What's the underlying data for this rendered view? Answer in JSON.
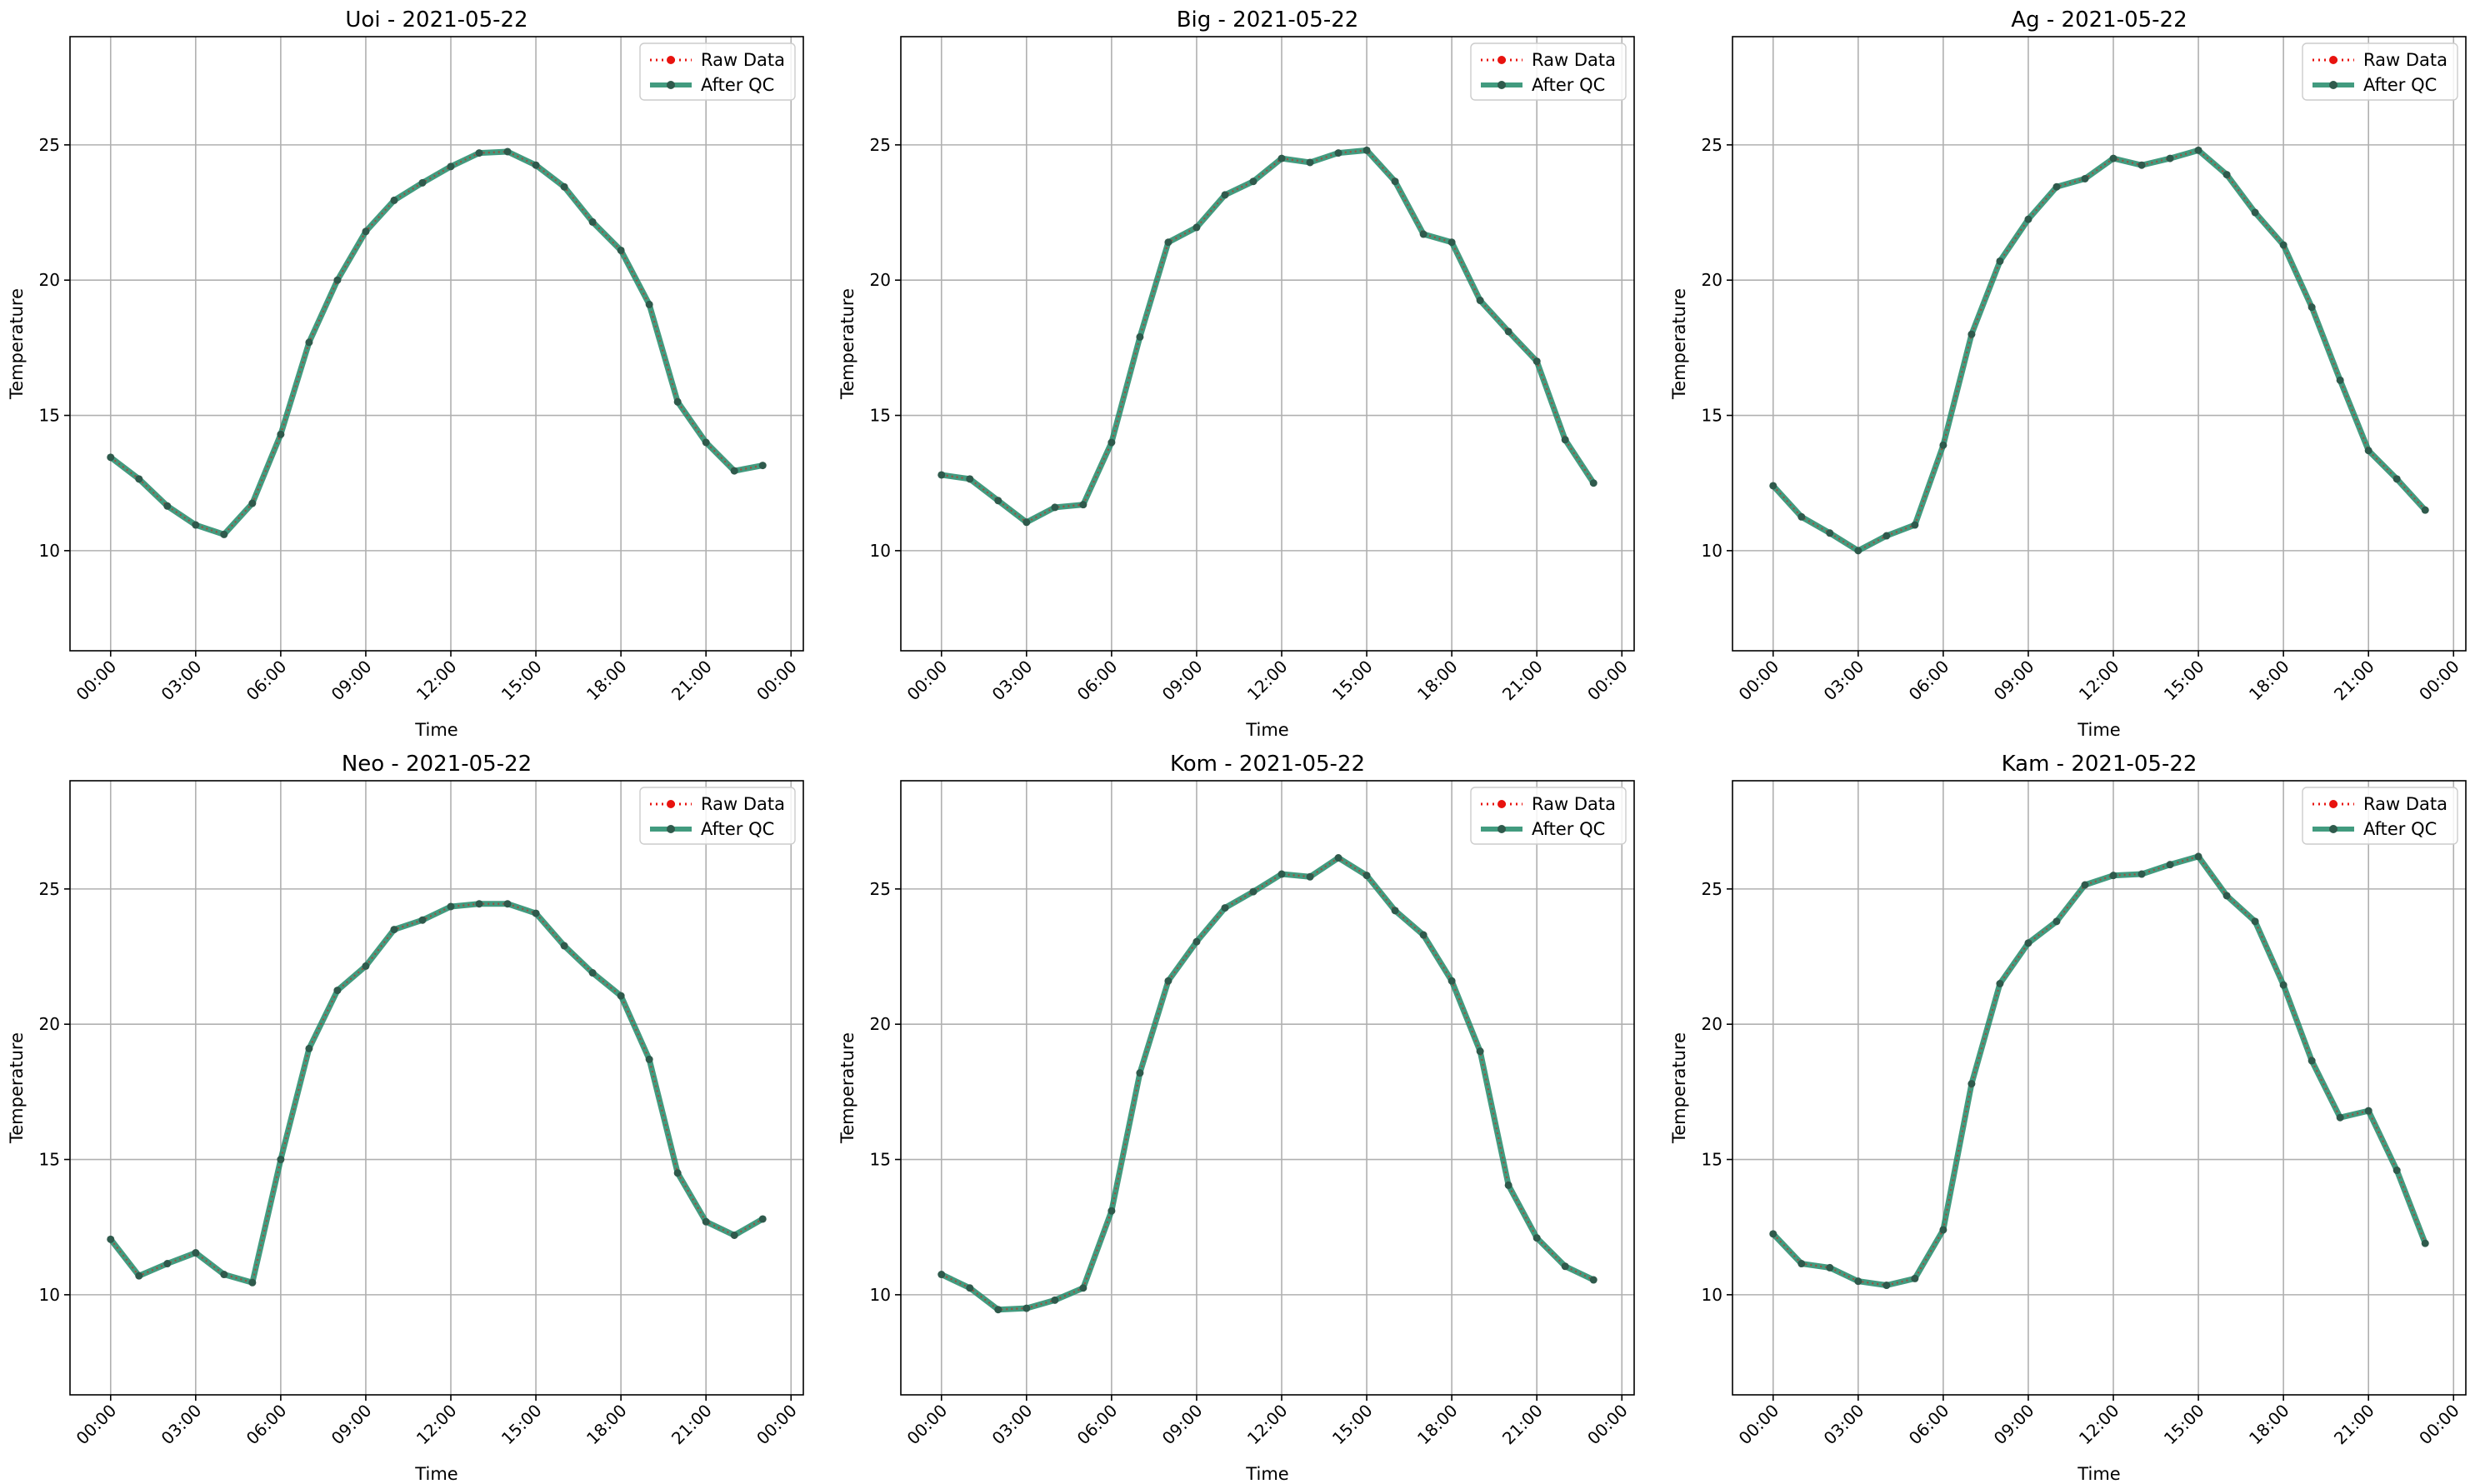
{
  "chart_data": [
    {
      "type": "line",
      "title": "Uoi - 2021-05-22",
      "xlabel": "Time",
      "ylabel": "Temperature",
      "xlim": [
        "2021-05-21 22:34",
        "2021-05-23 00:26"
      ],
      "ylim": [
        6.3,
        29.0
      ],
      "yticks": [
        10,
        15,
        20,
        25
      ],
      "xticks": [
        "00:00",
        "03:00",
        "06:00",
        "09:00",
        "12:00",
        "15:00",
        "18:00",
        "21:00",
        "00:00"
      ],
      "grid": true,
      "legend": "top-right",
      "x": [
        "00:00",
        "01:00",
        "02:00",
        "03:00",
        "04:00",
        "05:00",
        "06:00",
        "07:00",
        "08:00",
        "09:00",
        "10:00",
        "11:00",
        "12:00",
        "13:00",
        "14:00",
        "15:00",
        "16:00",
        "17:00",
        "18:00",
        "19:00",
        "20:00",
        "21:00",
        "22:00",
        "23:00"
      ],
      "series": [
        {
          "name": "Raw Data",
          "values": [
            13.45,
            12.65,
            11.65,
            10.95,
            10.6,
            11.75,
            14.3,
            17.7,
            20.0,
            21.8,
            22.95,
            23.6,
            24.2,
            24.7,
            24.75,
            24.25,
            23.45,
            22.15,
            21.1,
            19.1,
            15.5,
            14.0,
            12.95,
            13.15
          ]
        },
        {
          "name": "After QC",
          "values": [
            13.45,
            12.65,
            11.65,
            10.95,
            10.6,
            11.75,
            14.3,
            17.7,
            20.0,
            21.8,
            22.95,
            23.6,
            24.2,
            24.7,
            24.75,
            24.25,
            23.45,
            22.15,
            21.1,
            19.1,
            15.5,
            14.0,
            12.95,
            13.15
          ]
        }
      ]
    },
    {
      "type": "line",
      "title": "Big - 2021-05-22",
      "xlabel": "Time",
      "ylabel": "Temperature",
      "xlim": [
        "2021-05-21 22:34",
        "2021-05-23 00:26"
      ],
      "ylim": [
        6.3,
        29.0
      ],
      "yticks": [
        10,
        15,
        20,
        25
      ],
      "xticks": [
        "00:00",
        "03:00",
        "06:00",
        "09:00",
        "12:00",
        "15:00",
        "18:00",
        "21:00",
        "00:00"
      ],
      "grid": true,
      "legend": "top-right",
      "x": [
        "00:00",
        "01:00",
        "02:00",
        "03:00",
        "04:00",
        "05:00",
        "06:00",
        "07:00",
        "08:00",
        "09:00",
        "10:00",
        "11:00",
        "12:00",
        "13:00",
        "14:00",
        "15:00",
        "16:00",
        "17:00",
        "18:00",
        "19:00",
        "20:00",
        "21:00",
        "22:00",
        "23:00"
      ],
      "series": [
        {
          "name": "Raw Data",
          "values": [
            12.8,
            12.65,
            11.85,
            11.05,
            11.6,
            11.7,
            14.0,
            17.9,
            21.4,
            21.95,
            23.15,
            23.65,
            24.5,
            24.35,
            24.7,
            24.8,
            23.65,
            21.7,
            21.4,
            19.25,
            18.1,
            17.0,
            14.1,
            12.5
          ]
        },
        {
          "name": "After QC",
          "values": [
            12.8,
            12.65,
            11.85,
            11.05,
            11.6,
            11.7,
            14.0,
            17.9,
            21.4,
            21.95,
            23.15,
            23.65,
            24.5,
            24.35,
            24.7,
            24.8,
            23.65,
            21.7,
            21.4,
            19.25,
            18.1,
            17.0,
            14.1,
            12.5
          ]
        }
      ]
    },
    {
      "type": "line",
      "title": "Ag - 2021-05-22",
      "xlabel": "Time",
      "ylabel": "Temperature",
      "xlim": [
        "2021-05-21 22:34",
        "2021-05-23 00:26"
      ],
      "ylim": [
        6.3,
        29.0
      ],
      "yticks": [
        10,
        15,
        20,
        25
      ],
      "xticks": [
        "00:00",
        "03:00",
        "06:00",
        "09:00",
        "12:00",
        "15:00",
        "18:00",
        "21:00",
        "00:00"
      ],
      "grid": true,
      "legend": "top-right",
      "x": [
        "00:00",
        "01:00",
        "02:00",
        "03:00",
        "04:00",
        "05:00",
        "06:00",
        "07:00",
        "08:00",
        "09:00",
        "10:00",
        "11:00",
        "12:00",
        "13:00",
        "14:00",
        "15:00",
        "16:00",
        "17:00",
        "18:00",
        "19:00",
        "20:00",
        "21:00",
        "22:00",
        "23:00"
      ],
      "series": [
        {
          "name": "Raw Data",
          "values": [
            12.4,
            11.25,
            10.65,
            10.0,
            10.55,
            10.95,
            13.9,
            18.0,
            20.7,
            22.25,
            23.45,
            23.75,
            24.5,
            24.25,
            24.5,
            24.8,
            23.9,
            22.5,
            21.3,
            19.0,
            16.3,
            13.7,
            12.65,
            11.5
          ]
        },
        {
          "name": "After QC",
          "values": [
            12.4,
            11.25,
            10.65,
            10.0,
            10.55,
            10.95,
            13.9,
            18.0,
            20.7,
            22.25,
            23.45,
            23.75,
            24.5,
            24.25,
            24.5,
            24.8,
            23.9,
            22.5,
            21.3,
            19.0,
            16.3,
            13.7,
            12.65,
            11.5
          ]
        }
      ]
    },
    {
      "type": "line",
      "title": "Neo - 2021-05-22",
      "xlabel": "Time",
      "ylabel": "Temperature",
      "xlim": [
        "2021-05-21 22:34",
        "2021-05-23 00:26"
      ],
      "ylim": [
        6.3,
        29.0
      ],
      "yticks": [
        10,
        15,
        20,
        25
      ],
      "xticks": [
        "00:00",
        "03:00",
        "06:00",
        "09:00",
        "12:00",
        "15:00",
        "18:00",
        "21:00",
        "00:00"
      ],
      "grid": true,
      "legend": "top-right",
      "x": [
        "00:00",
        "01:00",
        "02:00",
        "03:00",
        "04:00",
        "05:00",
        "06:00",
        "07:00",
        "08:00",
        "09:00",
        "10:00",
        "11:00",
        "12:00",
        "13:00",
        "14:00",
        "15:00",
        "16:00",
        "17:00",
        "18:00",
        "19:00",
        "20:00",
        "21:00",
        "22:00",
        "23:00"
      ],
      "series": [
        {
          "name": "Raw Data",
          "values": [
            12.05,
            10.7,
            11.15,
            11.55,
            10.75,
            10.45,
            15.0,
            19.1,
            21.25,
            22.15,
            23.5,
            23.85,
            24.35,
            24.45,
            24.45,
            24.1,
            22.9,
            21.9,
            21.05,
            18.7,
            14.5,
            12.7,
            12.2,
            12.8
          ]
        },
        {
          "name": "After QC",
          "values": [
            12.05,
            10.7,
            11.15,
            11.55,
            10.75,
            10.45,
            15.0,
            19.1,
            21.25,
            22.15,
            23.5,
            23.85,
            24.35,
            24.45,
            24.45,
            24.1,
            22.9,
            21.9,
            21.05,
            18.7,
            14.5,
            12.7,
            12.2,
            12.8
          ]
        }
      ]
    },
    {
      "type": "line",
      "title": "Kom - 2021-05-22",
      "xlabel": "Time",
      "ylabel": "Temperature",
      "xlim": [
        "2021-05-21 22:34",
        "2021-05-23 00:26"
      ],
      "ylim": [
        6.3,
        29.0
      ],
      "yticks": [
        10,
        15,
        20,
        25
      ],
      "xticks": [
        "00:00",
        "03:00",
        "06:00",
        "09:00",
        "12:00",
        "15:00",
        "18:00",
        "21:00",
        "00:00"
      ],
      "grid": true,
      "legend": "top-right",
      "x": [
        "00:00",
        "01:00",
        "02:00",
        "03:00",
        "04:00",
        "05:00",
        "06:00",
        "07:00",
        "08:00",
        "09:00",
        "10:00",
        "11:00",
        "12:00",
        "13:00",
        "14:00",
        "15:00",
        "16:00",
        "17:00",
        "18:00",
        "19:00",
        "20:00",
        "21:00",
        "22:00",
        "23:00"
      ],
      "series": [
        {
          "name": "Raw Data",
          "values": [
            10.75,
            10.25,
            9.45,
            9.5,
            9.8,
            10.25,
            13.1,
            18.2,
            21.6,
            23.05,
            24.3,
            24.9,
            25.55,
            25.45,
            26.15,
            25.5,
            24.2,
            23.3,
            21.6,
            19.0,
            14.05,
            12.1,
            11.05,
            10.55
          ]
        },
        {
          "name": "After QC",
          "values": [
            10.75,
            10.25,
            9.45,
            9.5,
            9.8,
            10.25,
            13.1,
            18.2,
            21.6,
            23.05,
            24.3,
            24.9,
            25.55,
            25.45,
            26.15,
            25.5,
            24.2,
            23.3,
            21.6,
            19.0,
            14.05,
            12.1,
            11.05,
            10.55
          ]
        }
      ]
    },
    {
      "type": "line",
      "title": "Kam - 2021-05-22",
      "xlabel": "Time",
      "ylabel": "Temperature",
      "xlim": [
        "2021-05-21 22:34",
        "2021-05-23 00:26"
      ],
      "ylim": [
        6.3,
        29.0
      ],
      "yticks": [
        10,
        15,
        20,
        25
      ],
      "xticks": [
        "00:00",
        "03:00",
        "06:00",
        "09:00",
        "12:00",
        "15:00",
        "18:00",
        "21:00",
        "00:00"
      ],
      "grid": true,
      "legend": "top-right",
      "x": [
        "00:00",
        "01:00",
        "02:00",
        "03:00",
        "04:00",
        "05:00",
        "06:00",
        "07:00",
        "08:00",
        "09:00",
        "10:00",
        "11:00",
        "12:00",
        "13:00",
        "14:00",
        "15:00",
        "16:00",
        "17:00",
        "18:00",
        "19:00",
        "20:00",
        "21:00",
        "22:00",
        "23:00"
      ],
      "series": [
        {
          "name": "Raw Data",
          "values": [
            12.25,
            11.15,
            11.0,
            10.5,
            10.35,
            10.6,
            12.4,
            17.8,
            21.5,
            23.0,
            23.8,
            25.15,
            25.5,
            25.55,
            25.9,
            26.2,
            24.75,
            23.8,
            21.45,
            18.65,
            16.55,
            16.8,
            14.6,
            11.9
          ]
        },
        {
          "name": "After QC",
          "values": [
            12.25,
            11.15,
            11.0,
            10.5,
            10.35,
            10.6,
            12.4,
            17.8,
            21.5,
            23.0,
            23.8,
            25.15,
            25.5,
            25.55,
            25.9,
            26.2,
            24.75,
            23.8,
            21.45,
            18.65,
            16.55,
            16.8,
            14.6,
            11.9
          ]
        }
      ]
    }
  ],
  "colors": {
    "raw": "#e8130f",
    "after_qc": "#218a68",
    "grid": "#b0b0b0",
    "axes": "#000000"
  }
}
